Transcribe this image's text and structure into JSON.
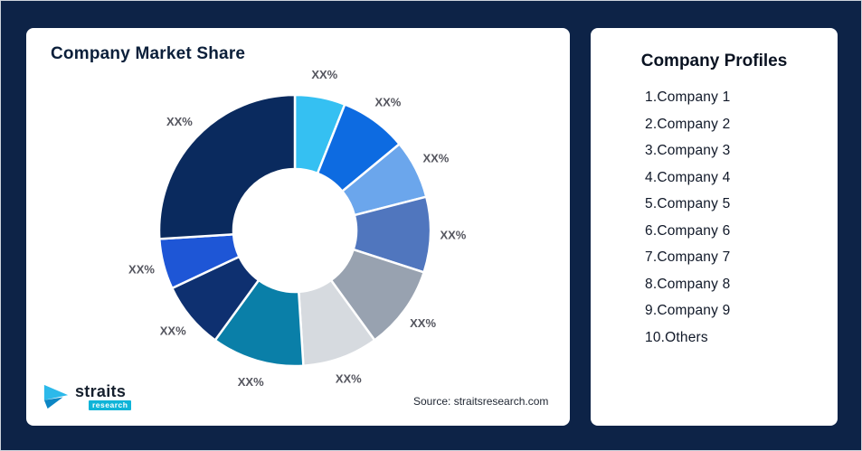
{
  "page": {
    "background": "#0D2347"
  },
  "market_share_card": {
    "title": "Company Market Share",
    "source": "Source: straitsresearch.com",
    "logo": {
      "name": "straits",
      "sub": "research"
    }
  },
  "profiles_card": {
    "title": "Company Profiles",
    "items": [
      "1.Company 1",
      "2.Company 2",
      "3.Company 3",
      "4.Company 4",
      "5.Company 5",
      "6.Company 6",
      "7.Company 7",
      "8.Company 8",
      "9.Company 9",
      "10.Others"
    ]
  },
  "chart_data": {
    "type": "pie",
    "donut": true,
    "title": "Company Market Share",
    "start_angle_deg": 0,
    "direction": "clockwise",
    "inner_radius_ratio": 0.45,
    "legend": "none",
    "segments": [
      {
        "label": "XX%",
        "value": 6,
        "color": "#35C0F2"
      },
      {
        "label": "XX%",
        "value": 8,
        "color": "#0D6BE1"
      },
      {
        "label": "XX%",
        "value": 7,
        "color": "#6BA6EC"
      },
      {
        "label": "XX%",
        "value": 9,
        "color": "#5076BE"
      },
      {
        "label": "XX%",
        "value": 10,
        "color": "#98A2B0"
      },
      {
        "label": "XX%",
        "value": 9,
        "color": "#D6DADF"
      },
      {
        "label": "XX%",
        "value": 11,
        "color": "#0A7FA8"
      },
      {
        "label": "XX%",
        "value": 8,
        "color": "#0E3070"
      },
      {
        "label": "XX%",
        "value": 6,
        "color": "#1E56D6"
      },
      {
        "label": "XX%",
        "value": 26,
        "color": "#0A2A5E"
      }
    ]
  }
}
